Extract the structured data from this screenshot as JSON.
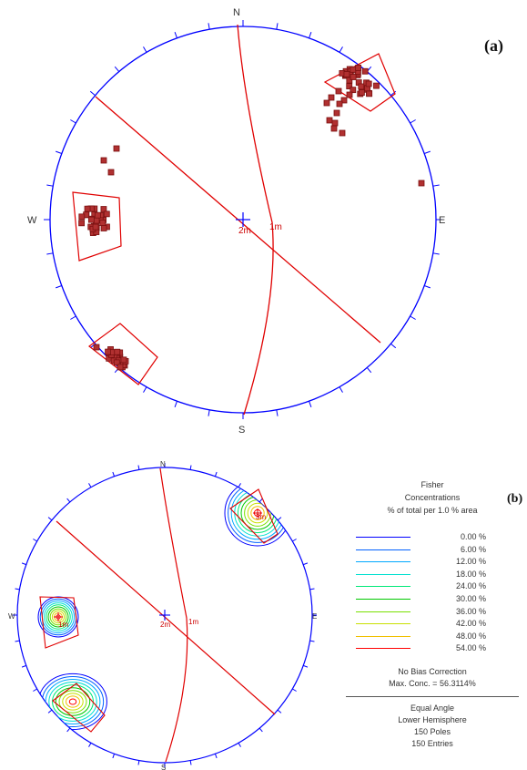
{
  "panel_a": {
    "label": "(a)",
    "compass": {
      "north": "N",
      "south": "S",
      "east": "E",
      "west": "W"
    },
    "markers": {
      "center": "2m",
      "intersection": "1m"
    }
  },
  "panel_b": {
    "label": "(b)",
    "compass": {
      "north": "N",
      "south": "S",
      "east": "E",
      "west": "W"
    },
    "markers": {
      "center": "2m",
      "intersection": "1m",
      "west_set": "1m",
      "ne_set": "3m"
    }
  },
  "legend": {
    "title1": "Fisher",
    "title2": "Concentrations",
    "title3": "% of total per 1.0 % area",
    "levels": [
      {
        "value": "0.00 %",
        "color": "#0000ff"
      },
      {
        "value": "6.00 %",
        "color": "#0060ff"
      },
      {
        "value": "12.00 %",
        "color": "#00a8ff"
      },
      {
        "value": "18.00 %",
        "color": "#00e0d0"
      },
      {
        "value": "24.00 %",
        "color": "#00e878"
      },
      {
        "value": "30.00 %",
        "color": "#00c800"
      },
      {
        "value": "36.00 %",
        "color": "#78e000"
      },
      {
        "value": "42.00 %",
        "color": "#c8e000"
      },
      {
        "value": "48.00 %",
        "color": "#f0c000"
      },
      {
        "value": "54.00 %",
        "color": "#ff0000"
      }
    ],
    "bias": "No Bias Correction",
    "max_conc": "Max. Conc. = 56.3114%",
    "projection": "Equal Angle",
    "hemisphere": "Lower Hemisphere",
    "poles": "150 Poles",
    "entries": "150 Entries"
  },
  "colors": {
    "primitive": "#0000ff",
    "planes": "#e00000",
    "pole_fill": "#b03030"
  }
}
